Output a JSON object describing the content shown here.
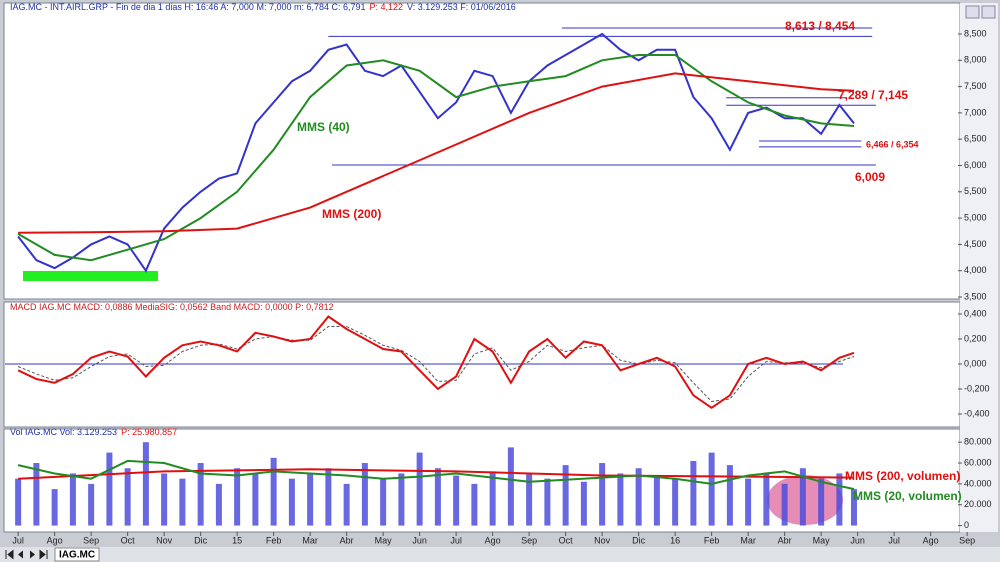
{
  "chart_data": [
    {
      "type": "line",
      "header": [
        "IAG.MC - INT.AIRL.GRP - Fin de dia 1 dias H: 16:46 A: 7,000 M: 7,000 m: 6,784 C: 6,791",
        "P: 4,122",
        "V: 3.129.253 F: 01/06/2016"
      ],
      "xlim": [
        -0.36,
        25.75
      ],
      "ylim": [
        3.481,
        8.956
      ],
      "yticks": [
        {
          "value": 3.5,
          "label": "3,500"
        },
        {
          "value": 4,
          "label": "4,000"
        },
        {
          "value": 4.5,
          "label": "4,500"
        },
        {
          "value": 5,
          "label": "5,000"
        },
        {
          "value": 5.5,
          "label": "5,500"
        },
        {
          "value": 6,
          "label": "6,000"
        },
        {
          "value": 6.5,
          "label": "6,500"
        },
        {
          "value": 7,
          "label": "7,000"
        },
        {
          "value": 7.5,
          "label": "7,500"
        },
        {
          "value": 8,
          "label": "8,000"
        },
        {
          "value": 8.5,
          "label": "8,500"
        }
      ],
      "series": [
        {
          "color": "#3333cc",
          "x": [
            0,
            0.5,
            1,
            1.5,
            2,
            2.5,
            3,
            3.5,
            4,
            4.5,
            5,
            5.5,
            6,
            6.5,
            7,
            7.5,
            8,
            8.5,
            9,
            9.5,
            10,
            10.5,
            11,
            11.5,
            12,
            12.5,
            13,
            13.5,
            14,
            14.5,
            15,
            15.5,
            16,
            16.5,
            17,
            17.5,
            18,
            18.5,
            19,
            19.5,
            20,
            20.5,
            21,
            21.5,
            22,
            22.5,
            22.9
          ],
          "values": [
            4.65,
            4.2,
            4.05,
            4.25,
            4.5,
            4.65,
            4.5,
            4.0,
            4.8,
            5.2,
            5.5,
            5.75,
            5.85,
            6.8,
            7.2,
            7.6,
            7.8,
            8.2,
            8.3,
            7.8,
            7.7,
            7.9,
            7.4,
            6.9,
            7.2,
            7.8,
            7.7,
            7.0,
            7.6,
            7.9,
            8.1,
            8.3,
            8.5,
            8.2,
            8.0,
            8.2,
            8.2,
            7.3,
            6.9,
            6.3,
            7.0,
            7.1,
            6.9,
            6.9,
            6.6,
            7.15,
            6.8
          ]
        },
        {
          "name": "MMS (40)",
          "color": "#228b22",
          "x": [
            0,
            1,
            2,
            3,
            4,
            5,
            6,
            7,
            8,
            9,
            10,
            11,
            12,
            13,
            14,
            15,
            16,
            17,
            18,
            19,
            20,
            21,
            22,
            22.9
          ],
          "values": [
            4.7,
            4.3,
            4.2,
            4.4,
            4.6,
            5.0,
            5.5,
            6.3,
            7.3,
            7.9,
            8.0,
            7.8,
            7.3,
            7.5,
            7.6,
            7.7,
            8.0,
            8.1,
            8.1,
            7.6,
            7.2,
            6.95,
            6.8,
            6.75
          ]
        },
        {
          "name": "MMS (200)",
          "color": "#e01010",
          "x": [
            0,
            2,
            4,
            6,
            8,
            10,
            12,
            14,
            16,
            18,
            20,
            22,
            22.9
          ],
          "values": [
            4.72,
            4.73,
            4.75,
            4.8,
            5.2,
            5.8,
            6.4,
            7.0,
            7.5,
            7.75,
            7.6,
            7.45,
            7.42
          ]
        }
      ],
      "levels": [
        {
          "label": "8,613 / 8,454",
          "values": [
            8.613,
            8.454
          ],
          "x": [
            [
              14.9,
              23.4
            ],
            [
              8.5,
              23.4
            ]
          ]
        },
        {
          "label": "7,289 / 7,145",
          "values": [
            7.289,
            7.145
          ],
          "x": [
            [
              19.4,
              22.7
            ],
            [
              19.4,
              23.5
            ]
          ]
        },
        {
          "label": "6,466 / 6,354",
          "values": [
            6.466,
            6.354
          ],
          "x": [
            [
              20.3,
              23.1
            ],
            [
              20.3,
              23.1
            ]
          ]
        },
        {
          "label": "6,009",
          "values": [
            6.009
          ],
          "x": [
            [
              8.6,
              23.5
            ]
          ]
        }
      ]
    },
    {
      "type": "line",
      "header": [
        "MACD IAG.MC MACD: 0,0886 MediaSIG: 0,0562 Band MACD: 0,0000 P: 0,7812"
      ],
      "xlim": [
        -0.36,
        25.75
      ],
      "ylim": [
        -0.488,
        0.472
      ],
      "reference_line": 0,
      "yticks": [
        {
          "value": -0.4,
          "label": "-0,400"
        },
        {
          "value": -0.2,
          "label": "-0,200"
        },
        {
          "value": 0,
          "label": "0,000"
        },
        {
          "value": 0.2,
          "label": "0,200"
        },
        {
          "value": 0.4,
          "label": "0,400"
        }
      ],
      "series": [
        {
          "color": "#555555",
          "dashed": true,
          "x": [
            0,
            0.5,
            1,
            1.5,
            2,
            2.5,
            3,
            3.5,
            4,
            4.5,
            5,
            5.5,
            6,
            6.5,
            7,
            7.5,
            8,
            8.5,
            9,
            9.5,
            10,
            10.5,
            11,
            11.5,
            12,
            12.5,
            13,
            13.5,
            14,
            14.5,
            15,
            15.5,
            16,
            16.5,
            17,
            17.5,
            18,
            18.5,
            19,
            19.5,
            20,
            20.5,
            21,
            21.5,
            22,
            22.5,
            22.9
          ],
          "values": [
            -0.02,
            -0.08,
            -0.13,
            -0.11,
            -0.02,
            0.06,
            0.08,
            -0.02,
            -0.01,
            0.1,
            0.15,
            0.16,
            0.12,
            0.2,
            0.22,
            0.19,
            0.19,
            0.3,
            0.3,
            0.23,
            0.15,
            0.11,
            0.02,
            -0.14,
            -0.13,
            0.08,
            0.13,
            -0.05,
            0.02,
            0.15,
            0.1,
            0.13,
            0.15,
            0.03,
            0.0,
            0.03,
            0.01,
            -0.15,
            -0.3,
            -0.28,
            -0.1,
            0.02,
            0.01,
            0.01,
            -0.03,
            0.02,
            0.06
          ]
        },
        {
          "color": "#e01010",
          "x": [
            0,
            0.5,
            1,
            1.5,
            2,
            2.5,
            3,
            3.5,
            4,
            4.5,
            5,
            5.5,
            6,
            6.5,
            7,
            7.5,
            8,
            8.5,
            9,
            9.5,
            10,
            10.5,
            11,
            11.5,
            12,
            12.5,
            13,
            13.5,
            14,
            14.5,
            15,
            15.5,
            16,
            16.5,
            17,
            17.5,
            18,
            18.5,
            19,
            19.5,
            20,
            20.5,
            21,
            21.5,
            22,
            22.5,
            22.9
          ],
          "values": [
            -0.05,
            -0.12,
            -0.15,
            -0.08,
            0.05,
            0.1,
            0.06,
            -0.1,
            0.05,
            0.15,
            0.18,
            0.15,
            0.1,
            0.25,
            0.22,
            0.18,
            0.2,
            0.38,
            0.28,
            0.2,
            0.12,
            0.1,
            -0.05,
            -0.2,
            -0.1,
            0.2,
            0.1,
            -0.15,
            0.1,
            0.2,
            0.05,
            0.18,
            0.15,
            -0.05,
            0.0,
            0.05,
            -0.02,
            -0.25,
            -0.35,
            -0.25,
            0.0,
            0.05,
            0.0,
            0.02,
            -0.05,
            0.05,
            0.09
          ]
        }
      ]
    },
    {
      "type": "bar",
      "header": [
        "Vol IAG.MC Vol: 3.129.253",
        "P: 25.980.857"
      ],
      "xlim": [
        -0.36,
        25.75
      ],
      "ylim": [
        -4250,
        91690
      ],
      "yticks": [
        {
          "value": 0,
          "label": "0"
        },
        {
          "value": 20000,
          "label": "20.000"
        },
        {
          "value": 40000,
          "label": "40.000"
        },
        {
          "value": 60000,
          "label": "60.000"
        },
        {
          "value": 80000,
          "label": "80.000"
        }
      ],
      "xticks": [
        {
          "value": 0,
          "label": "Jul"
        },
        {
          "value": 1,
          "label": "Ago"
        },
        {
          "value": 2,
          "label": "Sep"
        },
        {
          "value": 3,
          "label": "Oct"
        },
        {
          "value": 4,
          "label": "Nov"
        },
        {
          "value": 5,
          "label": "Dic"
        },
        {
          "value": 6,
          "label": "15"
        },
        {
          "value": 7,
          "label": "Feb"
        },
        {
          "value": 8,
          "label": "Mar"
        },
        {
          "value": 9,
          "label": "Abr"
        },
        {
          "value": 10,
          "label": "May"
        },
        {
          "value": 11,
          "label": "Jun"
        },
        {
          "value": 12,
          "label": "Jul"
        },
        {
          "value": 13,
          "label": "Ago"
        },
        {
          "value": 14,
          "label": "Sep"
        },
        {
          "value": 15,
          "label": "Oct"
        },
        {
          "value": 16,
          "label": "Nov"
        },
        {
          "value": 17,
          "label": "Dic"
        },
        {
          "value": 18,
          "label": "16"
        },
        {
          "value": 19,
          "label": "Feb"
        },
        {
          "value": 20,
          "label": "Mar"
        },
        {
          "value": 21,
          "label": "Abr"
        },
        {
          "value": 22,
          "label": "May"
        },
        {
          "value": 23,
          "label": "Jun"
        },
        {
          "value": 24,
          "label": "Jul"
        },
        {
          "value": 25,
          "label": "Ago"
        },
        {
          "value": 26,
          "label": "Sep"
        }
      ],
      "series": [
        {
          "type": "bar",
          "color": "#4d4ddb",
          "x": [
            0,
            0.5,
            1,
            1.5,
            2,
            2.5,
            3,
            3.5,
            4,
            4.5,
            5,
            5.5,
            6,
            6.5,
            7,
            7.5,
            8,
            8.5,
            9,
            9.5,
            10,
            10.5,
            11,
            11.5,
            12,
            12.5,
            13,
            13.5,
            14,
            14.5,
            15,
            15.5,
            16,
            16.5,
            17,
            17.5,
            18,
            18.5,
            19,
            19.5,
            20,
            20.5,
            21,
            21.5,
            22,
            22.5,
            22.9
          ],
          "values": [
            45000,
            60000,
            35000,
            50000,
            40000,
            70000,
            55000,
            80000,
            50000,
            45000,
            60000,
            40000,
            55000,
            50000,
            65000,
            45000,
            50000,
            55000,
            40000,
            60000,
            45000,
            50000,
            70000,
            55000,
            48000,
            40000,
            52000,
            75000,
            50000,
            45000,
            58000,
            42000,
            60000,
            50000,
            55000,
            48000,
            45000,
            62000,
            70000,
            58000,
            45000,
            50000,
            40000,
            55000,
            45000,
            50000,
            35000
          ]
        },
        {
          "type": "line",
          "name": "MMS (200, volumen)",
          "color": "#e01010",
          "x": [
            0,
            4,
            8,
            12,
            16,
            20,
            22.9
          ],
          "values": [
            45000,
            52000,
            54000,
            52000,
            48000,
            47000,
            46000
          ]
        },
        {
          "type": "line",
          "name": "MMS (20, volumen)",
          "color": "#228b22",
          "x": [
            0,
            1,
            2,
            3,
            4,
            5,
            6,
            7,
            8,
            9,
            10,
            11,
            12,
            13,
            14,
            15,
            16,
            17,
            18,
            19,
            20,
            21,
            22,
            22.9
          ],
          "values": [
            58000,
            50000,
            45000,
            62000,
            60000,
            50000,
            48000,
            52000,
            50000,
            48000,
            45000,
            47000,
            50000,
            46000,
            42000,
            44000,
            46000,
            48000,
            45000,
            40000,
            48000,
            52000,
            42000,
            35000
          ]
        }
      ]
    }
  ],
  "toolbar": {
    "tab": "IAG.MC"
  }
}
